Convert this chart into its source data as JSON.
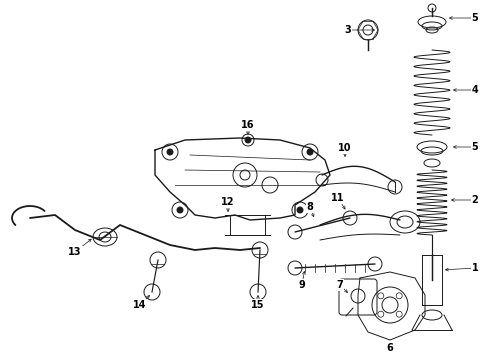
{
  "background_color": "#ffffff",
  "line_color": "#1a1a1a",
  "fig_width": 4.9,
  "fig_height": 3.6,
  "dpi": 100,
  "label_fontsize": 7.0,
  "lw_main": 0.7,
  "lw_thin": 0.5,
  "lw_thick": 1.0
}
